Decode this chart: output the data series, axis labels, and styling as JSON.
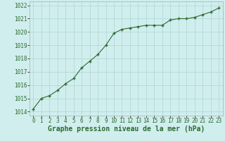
{
  "x": [
    0,
    1,
    2,
    3,
    4,
    5,
    6,
    7,
    8,
    9,
    10,
    11,
    12,
    13,
    14,
    15,
    16,
    17,
    18,
    19,
    20,
    21,
    22,
    23
  ],
  "y": [
    1014.2,
    1015.0,
    1015.2,
    1015.6,
    1016.1,
    1016.5,
    1017.3,
    1017.8,
    1018.3,
    1019.0,
    1019.9,
    1020.2,
    1020.3,
    1020.4,
    1020.5,
    1020.5,
    1020.5,
    1020.9,
    1021.0,
    1021.0,
    1021.1,
    1021.3,
    1021.5,
    1021.8
  ],
  "line_color": "#2d6a2d",
  "marker": "+",
  "marker_size": 3.5,
  "line_width": 0.8,
  "bg_color": "#d0eeee",
  "grid_color": "#b0d4d4",
  "xlabel": "Graphe pression niveau de la mer (hPa)",
  "xlabel_fontsize": 7.0,
  "tick_fontsize": 5.5,
  "ylim": [
    1013.7,
    1022.3
  ],
  "yticks": [
    1014,
    1015,
    1016,
    1017,
    1018,
    1019,
    1020,
    1021,
    1022
  ],
  "xlim": [
    -0.5,
    23.5
  ],
  "xticks": [
    0,
    1,
    2,
    3,
    4,
    5,
    6,
    7,
    8,
    9,
    10,
    11,
    12,
    13,
    14,
    15,
    16,
    17,
    18,
    19,
    20,
    21,
    22,
    23
  ]
}
